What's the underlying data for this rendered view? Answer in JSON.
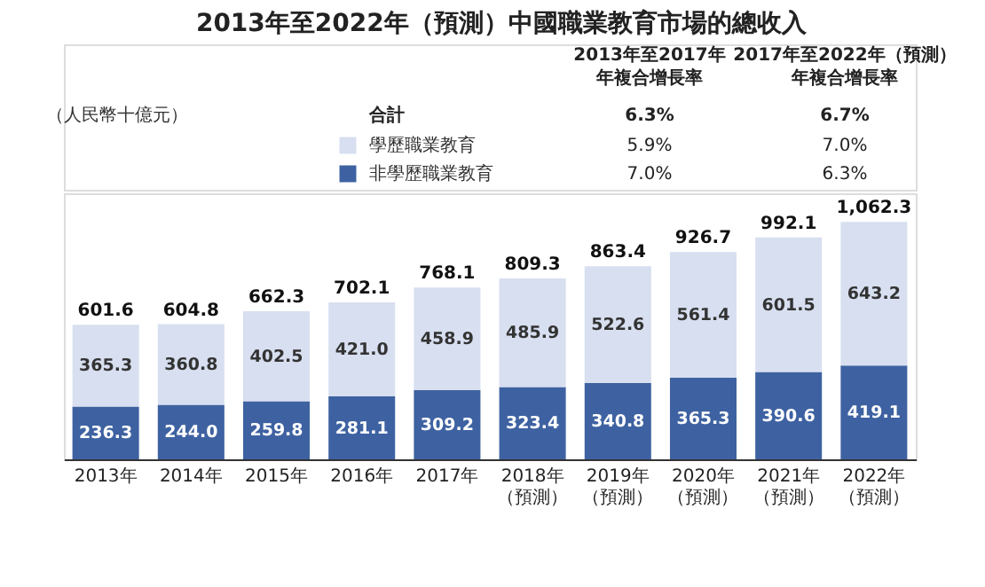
{
  "chart_data": {
    "type": "bar",
    "title": "2013年至2022年（預測）中國職業教育市場的總收入",
    "stacked": true,
    "legend": "top",
    "categories": [
      "2013年",
      "2014年",
      "2015年",
      "2016年",
      "2017年",
      "2018年（預測）",
      "2019年（預測）",
      "2020年（預測）",
      "2021年（預測）",
      "2022年（預測）"
    ],
    "series": [
      {
        "name": "非學歷職業教育",
        "color": "#3e62a1",
        "values": [
          236.3,
          244.0,
          259.8,
          281.1,
          309.2,
          323.4,
          340.8,
          365.3,
          390.6,
          419.1
        ],
        "value_labels": [
          "236.3",
          "244.0",
          "259.8",
          "281.1",
          "309.2",
          "323.4",
          "340.8",
          "365.3",
          "390.6",
          "419.1"
        ]
      },
      {
        "name": "學歷職業教育",
        "color": "#d7dff0",
        "values": [
          365.3,
          360.8,
          402.5,
          421.0,
          458.9,
          485.9,
          522.6,
          561.4,
          601.5,
          643.2
        ],
        "value_labels": [
          "365.3",
          "360.8",
          "402.5",
          "421.0",
          "458.9",
          "485.9",
          "522.6",
          "561.4",
          "601.5",
          "643.2"
        ]
      }
    ],
    "totals": [
      "601.6",
      "604.8",
      "662.3",
      "702.1",
      "768.1",
      "809.3",
      "863.4",
      "926.7",
      "992.1",
      "1,062.3"
    ],
    "annotations": [
      "（人民幣十億元）",
      "2013年至2017年",
      "年複合增長率",
      "2017年至2022年（預測）",
      "年複合增長率",
      "合計",
      "6.3%",
      "6.7%",
      "5.9%",
      "7.0%",
      "7.0%",
      "6.3%"
    ]
  }
}
